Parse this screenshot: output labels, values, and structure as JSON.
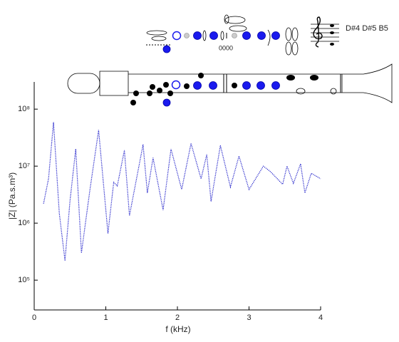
{
  "chart_data": {
    "type": "line",
    "x_label": "f (kHz)",
    "y_label": "|Z| (Pa.s.m³)",
    "annotations": [
      "D#4 D#5 B5",
      "0000"
    ],
    "log_y": true,
    "xlim": [
      0,
      4
    ],
    "xticks": [
      0,
      1,
      2,
      3,
      4
    ],
    "ylim": [
      30000,
      300000000
    ],
    "yticks": [
      {
        "value": 100000,
        "label": "10⁵"
      },
      {
        "value": 1000000,
        "label": "10⁶"
      },
      {
        "value": 10000000,
        "label": "10⁷"
      },
      {
        "value": 100000000,
        "label": "10⁸"
      }
    ],
    "series": [
      {
        "color": "#1a1ac8",
        "x": [
          0.13,
          0.2,
          0.27,
          0.35,
          0.43,
          0.5,
          0.58,
          0.66,
          0.78,
          0.9,
          1.03,
          1.11,
          1.16,
          1.26,
          1.33,
          1.52,
          1.58,
          1.66,
          1.8,
          1.91,
          2.06,
          2.19,
          2.33,
          2.41,
          2.47,
          2.6,
          2.74,
          2.86,
          3.0,
          3.2,
          3.3,
          3.47,
          3.53,
          3.62,
          3.72,
          3.78,
          3.87,
          4.0
        ],
        "values": [
          2200000,
          6000000,
          59000000,
          1500000,
          220000,
          2500000,
          20000000,
          300000,
          4000000,
          43000000,
          660000,
          5200000,
          4500000,
          19000000,
          1350000,
          24000000,
          3400000,
          14000000,
          1700000,
          20000000,
          3900000,
          25000000,
          6000000,
          16000000,
          2400000,
          23000000,
          4300000,
          15000000,
          3900000,
          10000000,
          8000000,
          4800000,
          10000000,
          5000000,
          11000000,
          3400000,
          7500000,
          6000000
        ]
      }
    ]
  }
}
